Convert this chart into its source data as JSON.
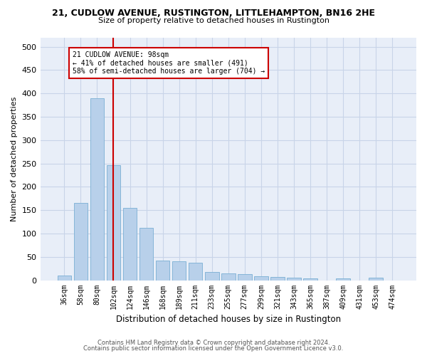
{
  "title_line1": "21, CUDLOW AVENUE, RUSTINGTON, LITTLEHAMPTON, BN16 2HE",
  "title_line2": "Size of property relative to detached houses in Rustington",
  "xlabel": "Distribution of detached houses by size in Rustington",
  "ylabel": "Number of detached properties",
  "categories": [
    "36sqm",
    "58sqm",
    "80sqm",
    "102sqm",
    "124sqm",
    "146sqm",
    "168sqm",
    "189sqm",
    "211sqm",
    "233sqm",
    "255sqm",
    "277sqm",
    "299sqm",
    "321sqm",
    "343sqm",
    "365sqm",
    "387sqm",
    "409sqm",
    "431sqm",
    "453sqm",
    "474sqm"
  ],
  "values": [
    10,
    165,
    390,
    247,
    155,
    112,
    42,
    40,
    38,
    17,
    14,
    13,
    8,
    7,
    5,
    4,
    0,
    4,
    0,
    5,
    0
  ],
  "bar_color": "#b8d0ea",
  "bar_edge_color": "#7aafd4",
  "marker_bin_index": 3,
  "annotation_line1": "21 CUDLOW AVENUE: 98sqm",
  "annotation_line2": "← 41% of detached houses are smaller (491)",
  "annotation_line3": "58% of semi-detached houses are larger (704) →",
  "vline_color": "#cc0000",
  "annotation_box_color": "#ffffff",
  "annotation_box_edge": "#cc0000",
  "footer_line1": "Contains HM Land Registry data © Crown copyright and database right 2024.",
  "footer_line2": "Contains public sector information licensed under the Open Government Licence v3.0.",
  "ylim": [
    0,
    520
  ],
  "yticks": [
    0,
    50,
    100,
    150,
    200,
    250,
    300,
    350,
    400,
    450,
    500
  ],
  "grid_color": "#c8d4e8",
  "background_color": "#e8eef8",
  "fig_bg": "#ffffff"
}
